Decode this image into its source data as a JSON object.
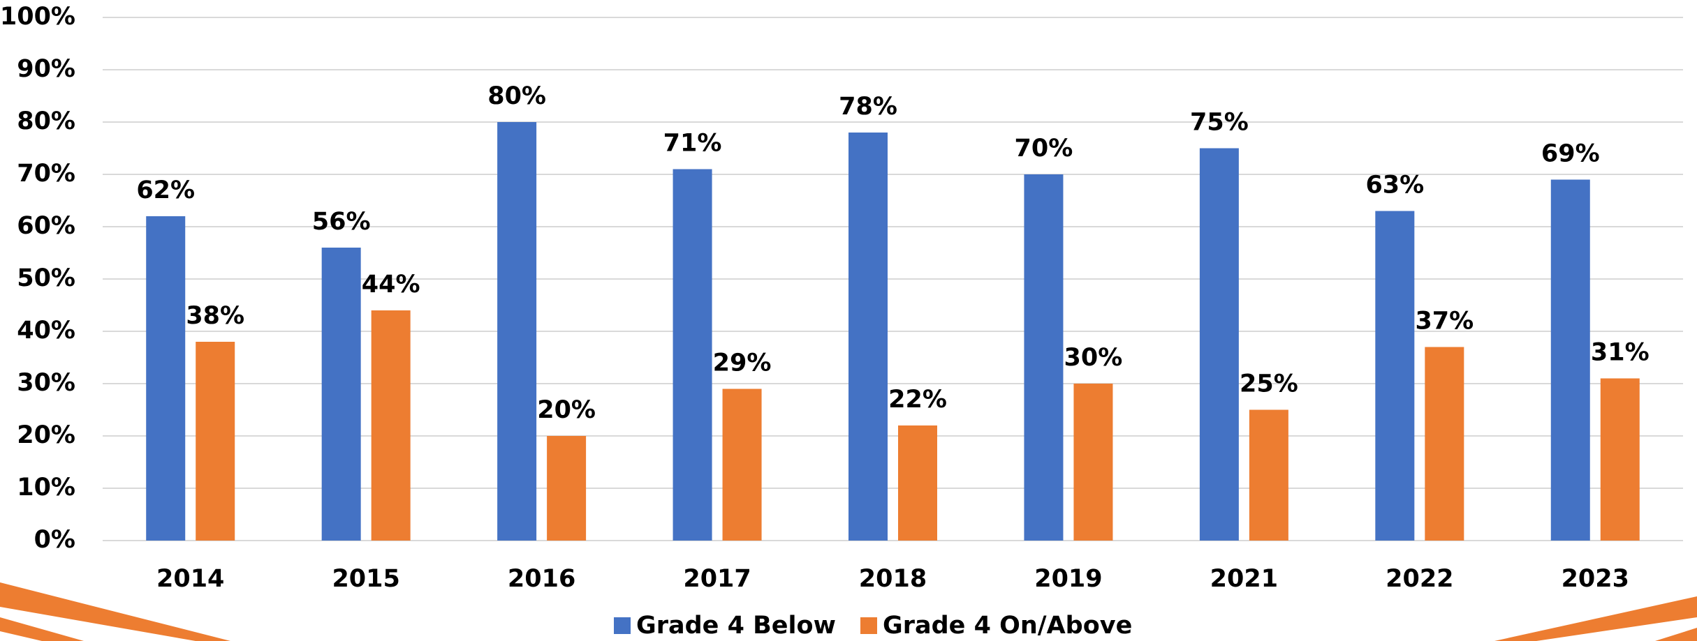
{
  "chart_data": {
    "type": "bar",
    "categories": [
      "2014",
      "2015",
      "2016",
      "2017",
      "2018",
      "2019",
      "2021",
      "2022",
      "2023"
    ],
    "series": [
      {
        "name": "Grade 4 Below",
        "color": "#4472c4",
        "values": [
          62,
          56,
          80,
          71,
          78,
          70,
          75,
          63,
          69
        ],
        "value_labels": [
          "62%",
          "56%",
          "80%",
          "71%",
          "78%",
          "70%",
          "75%",
          "63%",
          "69%"
        ]
      },
      {
        "name": "Grade 4 On/Above",
        "color": "#ed7d31",
        "values": [
          38,
          44,
          20,
          29,
          22,
          30,
          25,
          37,
          31
        ],
        "value_labels": [
          "38%",
          "44%",
          "20%",
          "29%",
          "22%",
          "30%",
          "25%",
          "37%",
          "31%"
        ]
      }
    ],
    "ylim": [
      0,
      100
    ],
    "yticks": [
      {
        "value": 0,
        "label": "0%"
      },
      {
        "value": 10,
        "label": "10%"
      },
      {
        "value": 20,
        "label": "20%"
      },
      {
        "value": 30,
        "label": "30%"
      },
      {
        "value": 40,
        "label": "40%"
      },
      {
        "value": 50,
        "label": "50%"
      },
      {
        "value": 60,
        "label": "60%"
      },
      {
        "value": 70,
        "label": "70%"
      },
      {
        "value": 80,
        "label": "80%"
      },
      {
        "value": 90,
        "label": "90%"
      },
      {
        "value": 100,
        "label": "100%"
      }
    ],
    "grid": true,
    "legend": "bottom"
  }
}
